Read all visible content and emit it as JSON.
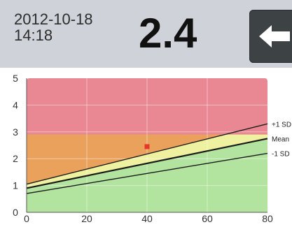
{
  "header": {
    "date": "2012-10-18",
    "time": "14:18",
    "value": "2.4",
    "back_button_icon": "arrow-left-icon"
  },
  "colors": {
    "header_bg": "#cfd3d9",
    "zone_red": "#e98892",
    "zone_orange": "#eaa15c",
    "zone_yellow": "#eef1a0",
    "zone_green": "#b2e49f",
    "marker": "#e8372a"
  },
  "chart_data": {
    "type": "line",
    "xlim": [
      0,
      80
    ],
    "ylim": [
      0,
      5
    ],
    "x_ticks": [
      "0",
      "20",
      "40",
      "60",
      "80"
    ],
    "y_ticks": [
      "0",
      "1",
      "2",
      "3",
      "4",
      "5"
    ],
    "grid": true,
    "series": [
      {
        "name": "+1 SD",
        "x": [
          0,
          80
        ],
        "y": [
          1.05,
          3.3
        ]
      },
      {
        "name": "Mean",
        "x": [
          0,
          80
        ],
        "y": [
          0.9,
          2.75
        ]
      },
      {
        "name": "-1 SD",
        "x": [
          0,
          80
        ],
        "y": [
          0.7,
          2.2
        ]
      }
    ],
    "zones": [
      {
        "color": "red",
        "from": 2.9,
        "to": 5
      },
      {
        "color": "orange",
        "from": "Mean",
        "to": 2.9
      },
      {
        "color": "yellow",
        "from": "Mean",
        "to": "+1 SD"
      },
      {
        "color": "green",
        "from": 0,
        "to": "Mean"
      }
    ],
    "points": [
      {
        "x": 40,
        "y": 2.45
      }
    ]
  }
}
